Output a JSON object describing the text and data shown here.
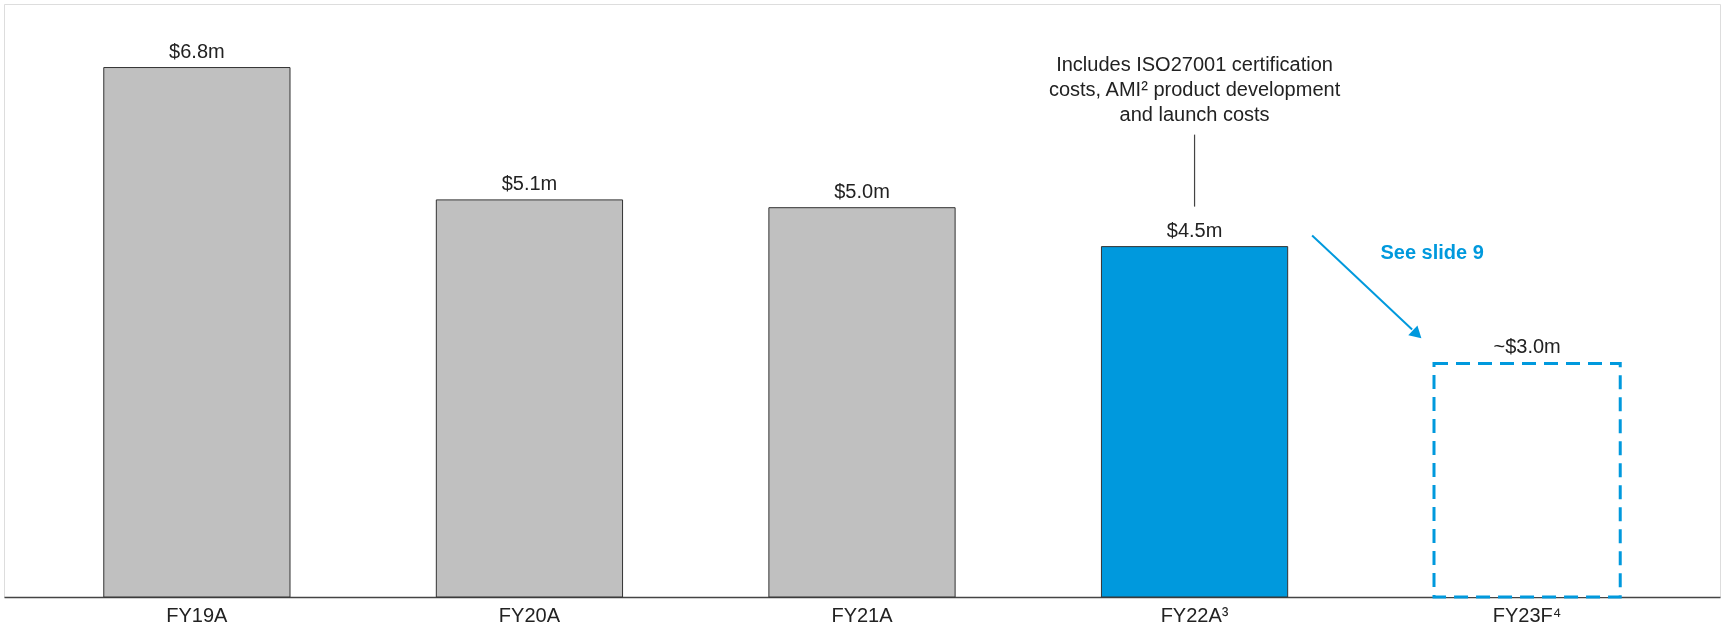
{
  "chart_data": {
    "type": "bar",
    "categories": [
      "FY19A",
      "FY20A",
      "FY21A",
      "FY22A³",
      "FY23F⁴"
    ],
    "series": [
      {
        "colors": [
          "#c0c0c0",
          "#c0c0c0",
          "#c0c0c0",
          "#0099dd",
          null
        ],
        "values": [
          6.8,
          5.1,
          5.0,
          4.5,
          null
        ],
        "value_labels": [
          "$6.8m",
          "$5.1m",
          "$5.0m",
          "$4.5m",
          null
        ],
        "line_style": "solid"
      },
      {
        "color": "#0099dd",
        "values": [
          null,
          null,
          null,
          null,
          3.0
        ],
        "value_labels": [
          null,
          null,
          null,
          null,
          "~$3.0m"
        ],
        "line_style": "dashed"
      }
    ],
    "annotations": [
      "Includes ISO27001 certification costs, AMI² product development and launch costs",
      "See slide 9"
    ],
    "grid": false,
    "tick_labels": "x"
  }
}
